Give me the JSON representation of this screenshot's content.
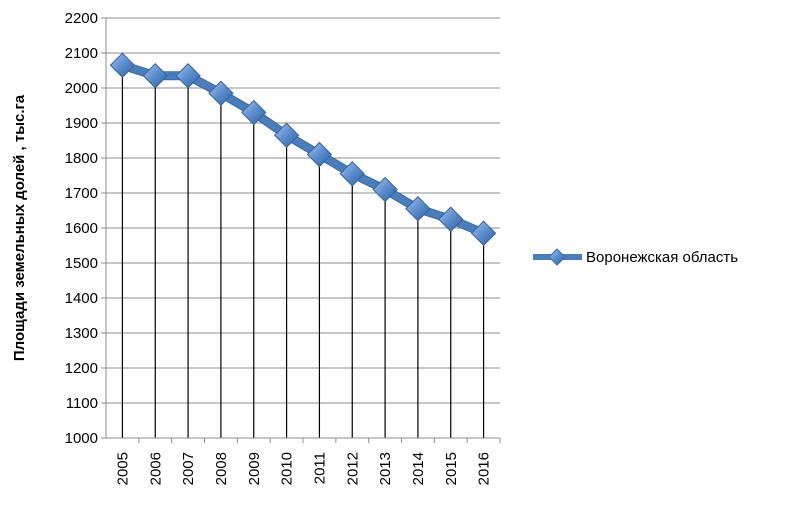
{
  "chart_data": {
    "type": "line",
    "title": "",
    "xlabel": "",
    "ylabel": "Площади земельных долей , тыс.га",
    "categories": [
      "2005",
      "2006",
      "2007",
      "2008",
      "2009",
      "2010",
      "2011",
      "2012",
      "2013",
      "2014",
      "2015",
      "2016"
    ],
    "yticks": [
      "1000",
      "1100",
      "1200",
      "1300",
      "1400",
      "1500",
      "1600",
      "1700",
      "1800",
      "1900",
      "2000",
      "2100",
      "2200"
    ],
    "ylim": [
      1000,
      2200
    ],
    "grid": "horizontal",
    "drop_lines": true,
    "legend_position": "right",
    "series": [
      {
        "name": "Воронежская область",
        "color": "#4a7ebb",
        "marker": "diamond",
        "values": [
          2065,
          2035,
          2035,
          1985,
          1930,
          1865,
          1810,
          1755,
          1710,
          1655,
          1625,
          1585
        ]
      }
    ]
  }
}
